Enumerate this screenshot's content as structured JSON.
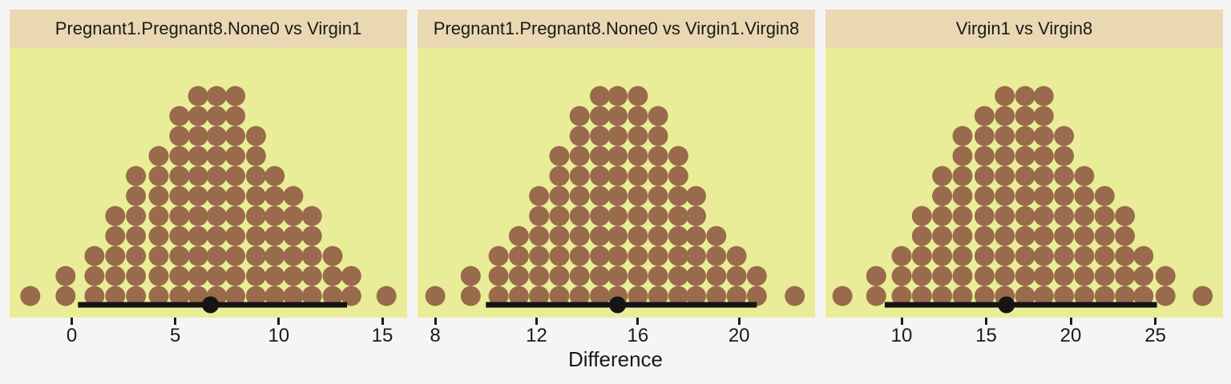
{
  "figure": {
    "background": "#f5f5f5",
    "panel_background": "#e9ed97",
    "strip_background": "#e9d8b2",
    "dot_color": "#9a6a4c",
    "interval_color": "#151515",
    "text_color": "#1a1a1a"
  },
  "chart_data": {
    "type": "dotplot",
    "description": "Three faceted bootstrap-difference dot distributions, each with a black point-estimate and confidence-interval bar along the bottom",
    "xlabel": "Difference",
    "legend_position": "none",
    "grid": false,
    "facets": [
      {
        "title": "Pregnant1.Pregnant8.None0 vs Virgin1",
        "x_domain": [
          -3.0,
          16.2
        ],
        "ticks": [
          0,
          5,
          10,
          15
        ],
        "dot_columns": [
          {
            "x": -2.0,
            "n": 1
          },
          {
            "x": -0.3,
            "n": 2
          },
          {
            "x": 1.1,
            "n": 3
          },
          {
            "x": 2.1,
            "n": 5
          },
          {
            "x": 3.1,
            "n": 7
          },
          {
            "x": 4.2,
            "n": 8
          },
          {
            "x": 5.2,
            "n": 10
          },
          {
            "x": 6.1,
            "n": 11
          },
          {
            "x": 7.0,
            "n": 11
          },
          {
            "x": 7.9,
            "n": 11
          },
          {
            "x": 8.9,
            "n": 9
          },
          {
            "x": 9.8,
            "n": 7
          },
          {
            "x": 10.7,
            "n": 6
          },
          {
            "x": 11.6,
            "n": 5
          },
          {
            "x": 12.6,
            "n": 3
          },
          {
            "x": 13.5,
            "n": 2
          },
          {
            "x": 15.2,
            "n": 1
          }
        ],
        "interval": {
          "lo": 0.3,
          "hi": 13.3,
          "estimate": 6.7
        }
      },
      {
        "title": "Pregnant1.Pregnant8.None0 vs Virgin1.Virgin8",
        "x_domain": [
          7.3,
          23.0
        ],
        "ticks": [
          8,
          12,
          16,
          20
        ],
        "dot_columns": [
          {
            "x": 8.0,
            "n": 1
          },
          {
            "x": 9.4,
            "n": 2
          },
          {
            "x": 10.5,
            "n": 3
          },
          {
            "x": 11.3,
            "n": 4
          },
          {
            "x": 12.1,
            "n": 6
          },
          {
            "x": 12.9,
            "n": 8
          },
          {
            "x": 13.7,
            "n": 10
          },
          {
            "x": 14.5,
            "n": 11
          },
          {
            "x": 15.2,
            "n": 11
          },
          {
            "x": 16.0,
            "n": 11
          },
          {
            "x": 16.8,
            "n": 10
          },
          {
            "x": 17.6,
            "n": 8
          },
          {
            "x": 18.3,
            "n": 6
          },
          {
            "x": 19.1,
            "n": 4
          },
          {
            "x": 19.9,
            "n": 3
          },
          {
            "x": 20.7,
            "n": 2
          },
          {
            "x": 22.2,
            "n": 1
          }
        ],
        "interval": {
          "lo": 10.0,
          "hi": 20.7,
          "estimate": 15.2
        }
      },
      {
        "title": "Virgin1 vs Virgin8",
        "x_domain": [
          5.5,
          29.0
        ],
        "ticks": [
          10,
          15,
          20,
          25
        ],
        "dot_columns": [
          {
            "x": 6.5,
            "n": 1
          },
          {
            "x": 8.5,
            "n": 2
          },
          {
            "x": 10.0,
            "n": 3
          },
          {
            "x": 11.2,
            "n": 5
          },
          {
            "x": 12.4,
            "n": 7
          },
          {
            "x": 13.6,
            "n": 9
          },
          {
            "x": 14.9,
            "n": 10
          },
          {
            "x": 16.1,
            "n": 11
          },
          {
            "x": 17.3,
            "n": 11
          },
          {
            "x": 18.4,
            "n": 11
          },
          {
            "x": 19.6,
            "n": 9
          },
          {
            "x": 20.8,
            "n": 7
          },
          {
            "x": 22.0,
            "n": 6
          },
          {
            "x": 23.2,
            "n": 5
          },
          {
            "x": 24.3,
            "n": 3
          },
          {
            "x": 25.6,
            "n": 2
          },
          {
            "x": 27.8,
            "n": 1
          }
        ],
        "interval": {
          "lo": 9.0,
          "hi": 25.1,
          "estimate": 16.2
        }
      }
    ]
  }
}
